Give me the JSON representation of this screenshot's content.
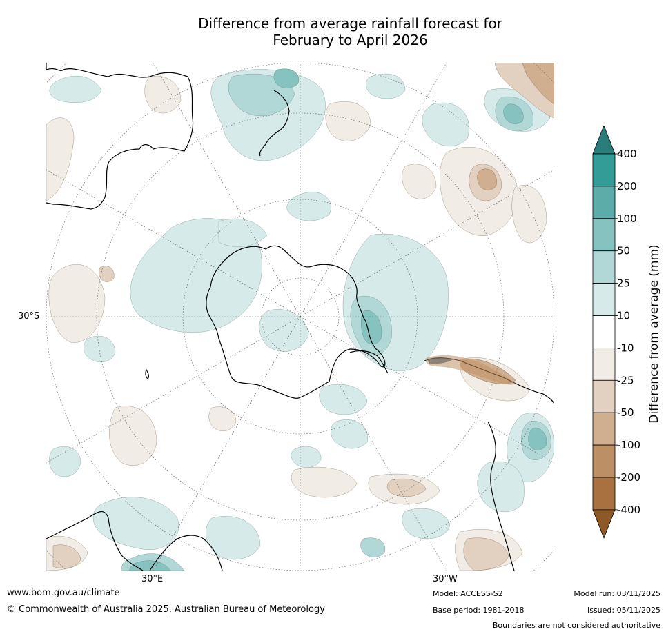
{
  "title": {
    "line1": "Difference from average rainfall forecast for",
    "line2": "February to April 2026"
  },
  "map": {
    "projection": "south-polar-stereographic",
    "latitude_label": "30°S",
    "longitude_labels": [
      "30°E",
      "30°W"
    ],
    "land_outline_color": "#000000",
    "graticule_color": "#555555"
  },
  "colorbar": {
    "title": "Difference from average (mm)",
    "tick_labels": [
      "400",
      "200",
      "100",
      "50",
      "25",
      "10",
      "-10",
      "-25",
      "-50",
      "-100",
      "-200",
      "-400"
    ],
    "bins": [
      {
        "range": "> 400",
        "color": "#2a7d7a"
      },
      {
        "range": "200 to 400",
        "color": "#339c97"
      },
      {
        "range": "100 to 200",
        "color": "#5cacaa"
      },
      {
        "range": "50 to 100",
        "color": "#86c3c0"
      },
      {
        "range": "25 to 50",
        "color": "#b1d8d6"
      },
      {
        "range": "10 to 25",
        "color": "#d6ebe9"
      },
      {
        "range": "-10 to 10",
        "color": "#ffffff"
      },
      {
        "range": "-25 to -10",
        "color": "#f1ece6"
      },
      {
        "range": "-50 to -25",
        "color": "#e2d0c1"
      },
      {
        "range": "-100 to -50",
        "color": "#d0af90"
      },
      {
        "range": "-200 to -100",
        "color": "#bd8f64"
      },
      {
        "range": "-400 to -200",
        "color": "#a9713f"
      },
      {
        "range": "< -400",
        "color": "#8d5a27"
      }
    ]
  },
  "footer": {
    "website": "www.bom.gov.au/climate",
    "copyright": "© Commonwealth of Australia 2025, Australian Bureau of Meteorology",
    "model": "Model: ACCESS-S2",
    "base_period": "Base period: 1981-2018",
    "model_run": "Model run: 03/11/2025",
    "issued": "Issued: 05/11/2025",
    "disclaimer": "Boundaries are not considered authoritative"
  }
}
